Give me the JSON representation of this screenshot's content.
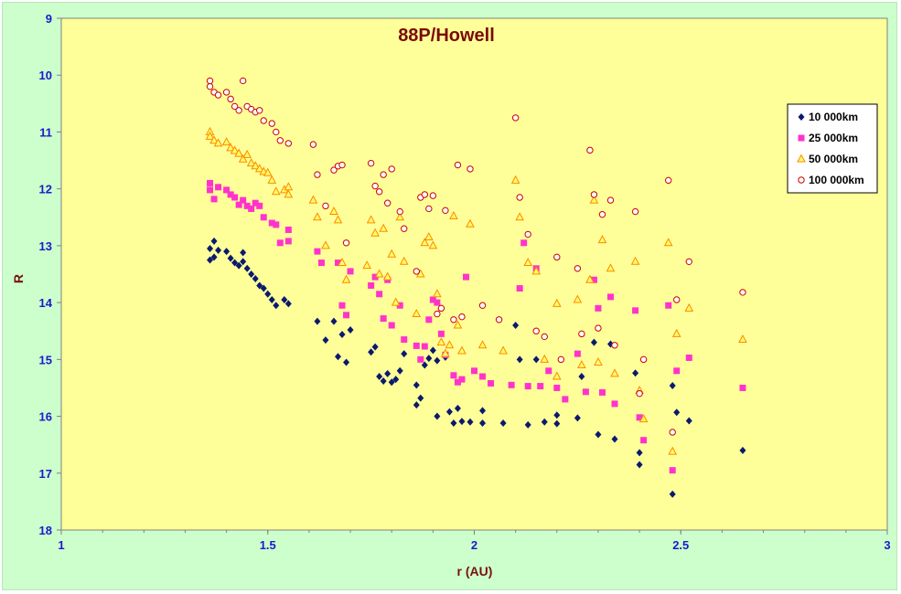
{
  "chart_data": {
    "type": "scatter",
    "title": "88P/Howell",
    "xlabel": "r (AU)",
    "ylabel": "R",
    "xlim": [
      1,
      3
    ],
    "ylim": [
      9,
      18
    ],
    "y_inverted": true,
    "x_ticks": [
      "1",
      "1.5",
      "2",
      "2.5",
      "3"
    ],
    "y_ticks": [
      "9",
      "10",
      "11",
      "12",
      "13",
      "14",
      "15",
      "16",
      "17",
      "18"
    ],
    "grid": false,
    "legend_position": "right",
    "colors": {
      "plot_background": "#ffff99",
      "frame_background": "#ccffcc",
      "title": "#7a0a0a",
      "axis_title": "#7a1010",
      "tick_label": "#1a1acc"
    },
    "series": [
      {
        "name": "10 000km",
        "marker": "diamond",
        "color": "#0a1a6e",
        "points": [
          [
            1.36,
            13.05
          ],
          [
            1.36,
            13.25
          ],
          [
            1.37,
            12.92
          ],
          [
            1.37,
            13.2
          ],
          [
            1.38,
            13.08
          ],
          [
            1.4,
            13.1
          ],
          [
            1.41,
            13.22
          ],
          [
            1.42,
            13.3
          ],
          [
            1.43,
            13.35
          ],
          [
            1.44,
            13.28
          ],
          [
            1.44,
            13.12
          ],
          [
            1.45,
            13.4
          ],
          [
            1.46,
            13.5
          ],
          [
            1.47,
            13.58
          ],
          [
            1.48,
            13.7
          ],
          [
            1.49,
            13.75
          ],
          [
            1.5,
            13.85
          ],
          [
            1.51,
            13.95
          ],
          [
            1.52,
            14.05
          ],
          [
            1.54,
            13.95
          ],
          [
            1.55,
            14.02
          ],
          [
            1.62,
            14.33
          ],
          [
            1.64,
            14.66
          ],
          [
            1.66,
            14.33
          ],
          [
            1.67,
            14.95
          ],
          [
            1.68,
            14.56
          ],
          [
            1.69,
            15.05
          ],
          [
            1.7,
            14.48
          ],
          [
            1.75,
            14.87
          ],
          [
            1.76,
            14.78
          ],
          [
            1.77,
            15.3
          ],
          [
            1.78,
            15.38
          ],
          [
            1.79,
            15.25
          ],
          [
            1.8,
            15.4
          ],
          [
            1.81,
            15.35
          ],
          [
            1.82,
            15.2
          ],
          [
            1.83,
            14.9
          ],
          [
            1.86,
            15.45
          ],
          [
            1.86,
            15.8
          ],
          [
            1.87,
            15.68
          ],
          [
            1.88,
            15.1
          ],
          [
            1.89,
            14.98
          ],
          [
            1.9,
            14.84
          ],
          [
            1.91,
            15.02
          ],
          [
            1.91,
            16.0
          ],
          [
            1.93,
            14.96
          ],
          [
            1.94,
            15.92
          ],
          [
            1.95,
            16.12
          ],
          [
            1.96,
            15.86
          ],
          [
            1.97,
            16.09
          ],
          [
            1.99,
            16.1
          ],
          [
            2.02,
            15.9
          ],
          [
            2.02,
            16.12
          ],
          [
            2.07,
            16.12
          ],
          [
            2.1,
            14.4
          ],
          [
            2.11,
            15.0
          ],
          [
            2.13,
            16.15
          ],
          [
            2.15,
            15.0
          ],
          [
            2.17,
            16.1
          ],
          [
            2.2,
            15.98
          ],
          [
            2.2,
            16.13
          ],
          [
            2.25,
            16.03
          ],
          [
            2.26,
            15.3
          ],
          [
            2.29,
            14.7
          ],
          [
            2.3,
            16.32
          ],
          [
            2.33,
            14.73
          ],
          [
            2.34,
            16.4
          ],
          [
            2.39,
            15.24
          ],
          [
            2.4,
            16.64
          ],
          [
            2.4,
            16.85
          ],
          [
            2.48,
            15.46
          ],
          [
            2.49,
            15.93
          ],
          [
            2.48,
            17.37
          ],
          [
            2.52,
            16.08
          ],
          [
            2.65,
            16.6
          ]
        ]
      },
      {
        "name": "25 000km",
        "marker": "square",
        "color": "#ff33cc",
        "points": [
          [
            1.36,
            11.9
          ],
          [
            1.36,
            12.02
          ],
          [
            1.37,
            12.18
          ],
          [
            1.38,
            11.97
          ],
          [
            1.4,
            12.02
          ],
          [
            1.41,
            12.1
          ],
          [
            1.42,
            12.15
          ],
          [
            1.43,
            12.28
          ],
          [
            1.44,
            12.2
          ],
          [
            1.45,
            12.3
          ],
          [
            1.46,
            12.35
          ],
          [
            1.47,
            12.25
          ],
          [
            1.48,
            12.3
          ],
          [
            1.49,
            12.5
          ],
          [
            1.51,
            12.6
          ],
          [
            1.52,
            12.63
          ],
          [
            1.53,
            12.95
          ],
          [
            1.55,
            12.72
          ],
          [
            1.55,
            12.92
          ],
          [
            1.62,
            13.1
          ],
          [
            1.63,
            13.3
          ],
          [
            1.67,
            13.3
          ],
          [
            1.68,
            14.05
          ],
          [
            1.69,
            14.22
          ],
          [
            1.7,
            13.45
          ],
          [
            1.75,
            13.7
          ],
          [
            1.76,
            13.55
          ],
          [
            1.77,
            13.85
          ],
          [
            1.78,
            14.28
          ],
          [
            1.79,
            13.6
          ],
          [
            1.8,
            14.4
          ],
          [
            1.82,
            14.05
          ],
          [
            1.83,
            14.65
          ],
          [
            1.86,
            14.76
          ],
          [
            1.87,
            15.0
          ],
          [
            1.88,
            14.77
          ],
          [
            1.89,
            14.3
          ],
          [
            1.9,
            13.95
          ],
          [
            1.91,
            14.0
          ],
          [
            1.92,
            14.55
          ],
          [
            1.93,
            14.92
          ],
          [
            1.95,
            15.28
          ],
          [
            1.96,
            15.4
          ],
          [
            1.97,
            15.35
          ],
          [
            1.98,
            13.55
          ],
          [
            2.0,
            15.2
          ],
          [
            2.02,
            15.3
          ],
          [
            2.04,
            15.42
          ],
          [
            2.09,
            15.45
          ],
          [
            2.11,
            13.75
          ],
          [
            2.12,
            12.95
          ],
          [
            2.13,
            15.47
          ],
          [
            2.15,
            13.4
          ],
          [
            2.16,
            15.47
          ],
          [
            2.18,
            15.2
          ],
          [
            2.2,
            15.5
          ],
          [
            2.22,
            15.7
          ],
          [
            2.25,
            14.9
          ],
          [
            2.27,
            15.57
          ],
          [
            2.29,
            13.6
          ],
          [
            2.3,
            14.1
          ],
          [
            2.31,
            15.58
          ],
          [
            2.33,
            13.9
          ],
          [
            2.34,
            15.78
          ],
          [
            2.39,
            14.14
          ],
          [
            2.4,
            16.02
          ],
          [
            2.41,
            16.42
          ],
          [
            2.47,
            14.05
          ],
          [
            2.48,
            16.95
          ],
          [
            2.49,
            15.2
          ],
          [
            2.52,
            14.97
          ],
          [
            2.65,
            15.5
          ]
        ]
      },
      {
        "name": "50 000km",
        "marker": "triangle",
        "color": "#ff8800",
        "points": [
          [
            1.36,
            11.0
          ],
          [
            1.36,
            11.08
          ],
          [
            1.37,
            11.15
          ],
          [
            1.38,
            11.2
          ],
          [
            1.4,
            11.18
          ],
          [
            1.41,
            11.28
          ],
          [
            1.42,
            11.33
          ],
          [
            1.43,
            11.38
          ],
          [
            1.44,
            11.48
          ],
          [
            1.45,
            11.4
          ],
          [
            1.46,
            11.55
          ],
          [
            1.47,
            11.6
          ],
          [
            1.48,
            11.65
          ],
          [
            1.49,
            11.7
          ],
          [
            1.5,
            11.72
          ],
          [
            1.51,
            11.85
          ],
          [
            1.52,
            12.05
          ],
          [
            1.54,
            12.02
          ],
          [
            1.55,
            11.97
          ],
          [
            1.55,
            12.1
          ],
          [
            1.61,
            12.2
          ],
          [
            1.62,
            12.5
          ],
          [
            1.64,
            13.0
          ],
          [
            1.66,
            12.4
          ],
          [
            1.67,
            12.55
          ],
          [
            1.68,
            13.3
          ],
          [
            1.69,
            13.6
          ],
          [
            1.74,
            13.35
          ],
          [
            1.75,
            12.55
          ],
          [
            1.76,
            12.78
          ],
          [
            1.77,
            13.5
          ],
          [
            1.78,
            12.7
          ],
          [
            1.79,
            13.55
          ],
          [
            1.8,
            13.15
          ],
          [
            1.81,
            14.0
          ],
          [
            1.82,
            12.5
          ],
          [
            1.83,
            13.28
          ],
          [
            1.86,
            14.2
          ],
          [
            1.87,
            13.5
          ],
          [
            1.88,
            12.95
          ],
          [
            1.89,
            12.85
          ],
          [
            1.9,
            13.0
          ],
          [
            1.91,
            13.85
          ],
          [
            1.92,
            14.7
          ],
          [
            1.93,
            14.9
          ],
          [
            1.94,
            14.75
          ],
          [
            1.95,
            12.48
          ],
          [
            1.96,
            14.4
          ],
          [
            1.97,
            14.85
          ],
          [
            1.99,
            12.62
          ],
          [
            2.02,
            14.75
          ],
          [
            2.07,
            14.85
          ],
          [
            2.1,
            11.85
          ],
          [
            2.11,
            12.5
          ],
          [
            2.13,
            13.3
          ],
          [
            2.15,
            13.45
          ],
          [
            2.17,
            15.0
          ],
          [
            2.2,
            14.02
          ],
          [
            2.2,
            15.3
          ],
          [
            2.25,
            13.95
          ],
          [
            2.26,
            15.1
          ],
          [
            2.28,
            13.6
          ],
          [
            2.29,
            12.2
          ],
          [
            2.3,
            15.05
          ],
          [
            2.31,
            12.9
          ],
          [
            2.33,
            13.4
          ],
          [
            2.34,
            15.25
          ],
          [
            2.39,
            13.28
          ],
          [
            2.4,
            15.55
          ],
          [
            2.41,
            16.05
          ],
          [
            2.47,
            12.95
          ],
          [
            2.48,
            16.62
          ],
          [
            2.49,
            14.55
          ],
          [
            2.52,
            14.1
          ],
          [
            2.65,
            14.65
          ]
        ]
      },
      {
        "name": "100 000km",
        "marker": "circle",
        "color": "#cc0000",
        "points": [
          [
            1.36,
            10.1
          ],
          [
            1.36,
            10.2
          ],
          [
            1.37,
            10.3
          ],
          [
            1.38,
            10.35
          ],
          [
            1.4,
            10.3
          ],
          [
            1.41,
            10.42
          ],
          [
            1.42,
            10.55
          ],
          [
            1.43,
            10.62
          ],
          [
            1.44,
            10.1
          ],
          [
            1.45,
            10.55
          ],
          [
            1.46,
            10.6
          ],
          [
            1.47,
            10.65
          ],
          [
            1.48,
            10.62
          ],
          [
            1.49,
            10.8
          ],
          [
            1.51,
            10.85
          ],
          [
            1.52,
            11.0
          ],
          [
            1.53,
            11.15
          ],
          [
            1.55,
            11.2
          ],
          [
            1.61,
            11.22
          ],
          [
            1.62,
            11.75
          ],
          [
            1.64,
            12.3
          ],
          [
            1.66,
            11.67
          ],
          [
            1.67,
            11.6
          ],
          [
            1.68,
            11.58
          ],
          [
            1.69,
            12.95
          ],
          [
            1.75,
            11.55
          ],
          [
            1.76,
            11.95
          ],
          [
            1.77,
            12.05
          ],
          [
            1.78,
            11.75
          ],
          [
            1.79,
            12.25
          ],
          [
            1.8,
            11.65
          ],
          [
            1.82,
            12.4
          ],
          [
            1.83,
            12.7
          ],
          [
            1.86,
            13.45
          ],
          [
            1.87,
            12.15
          ],
          [
            1.88,
            12.1
          ],
          [
            1.89,
            12.35
          ],
          [
            1.9,
            12.12
          ],
          [
            1.91,
            14.2
          ],
          [
            1.92,
            14.1
          ],
          [
            1.93,
            12.38
          ],
          [
            1.95,
            14.3
          ],
          [
            1.96,
            11.58
          ],
          [
            1.97,
            14.25
          ],
          [
            1.99,
            11.65
          ],
          [
            2.02,
            14.05
          ],
          [
            2.06,
            14.3
          ],
          [
            2.1,
            10.75
          ],
          [
            2.11,
            12.15
          ],
          [
            2.13,
            12.8
          ],
          [
            2.15,
            14.5
          ],
          [
            2.17,
            14.6
          ],
          [
            2.2,
            13.2
          ],
          [
            2.21,
            15.0
          ],
          [
            2.25,
            13.4
          ],
          [
            2.26,
            14.55
          ],
          [
            2.28,
            11.32
          ],
          [
            2.29,
            12.1
          ],
          [
            2.3,
            14.45
          ],
          [
            2.31,
            12.45
          ],
          [
            2.33,
            12.2
          ],
          [
            2.34,
            14.75
          ],
          [
            2.39,
            12.4
          ],
          [
            2.4,
            15.6
          ],
          [
            2.41,
            15.0
          ],
          [
            2.47,
            11.85
          ],
          [
            2.48,
            16.28
          ],
          [
            2.49,
            13.95
          ],
          [
            2.52,
            13.28
          ],
          [
            2.65,
            13.82
          ]
        ]
      }
    ]
  }
}
